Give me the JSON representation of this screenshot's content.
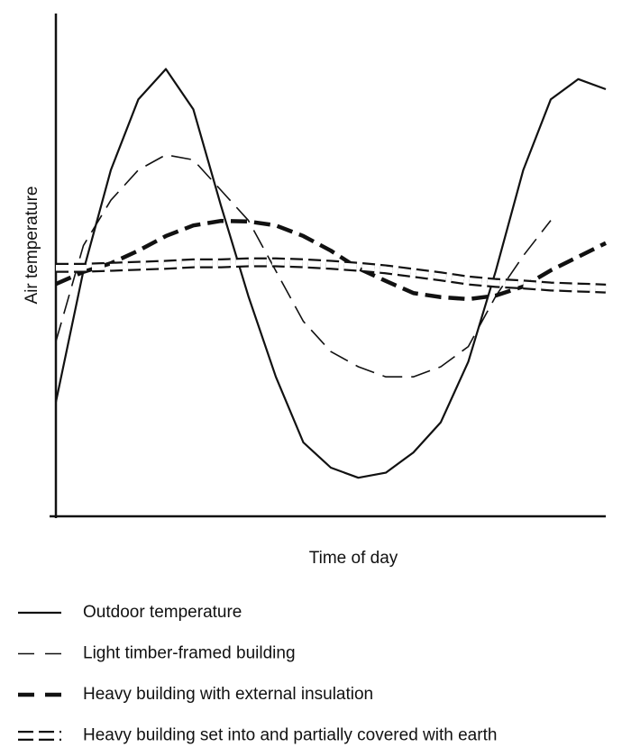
{
  "chart_data": {
    "type": "line",
    "x_label": "Time of day",
    "y_label": "Air temperature",
    "xlim": [
      0,
      100
    ],
    "ylim": [
      0,
      100
    ],
    "x": [
      0,
      5,
      10,
      15,
      20,
      25,
      30,
      35,
      40,
      45,
      50,
      55,
      60,
      65,
      70,
      75,
      80,
      85,
      90,
      95,
      100
    ],
    "series": [
      {
        "name": "Outdoor temperature",
        "color": "#111111",
        "style": "solid",
        "values": [
          23,
          49,
          69,
          83,
          89,
          81,
          62,
          44,
          28,
          15,
          10,
          8,
          9,
          13,
          19,
          31,
          49,
          69,
          83,
          87,
          85
        ]
      },
      {
        "name": "Light timber-framed building",
        "color": "#111111",
        "style": "dashed",
        "values": [
          35,
          54,
          63,
          69,
          72,
          71,
          65,
          59,
          49,
          39,
          33,
          30,
          28,
          28,
          30,
          34,
          44,
          52,
          59,
          null,
          null
        ]
      },
      {
        "name": "Heavy building with external insulation",
        "color": "#111111",
        "style": "thick-dashed",
        "values": [
          46.4,
          48.8,
          50.5,
          53,
          55.9,
          58,
          58.9,
          58.8,
          58,
          55.9,
          53,
          49.5,
          47,
          44.6,
          43.8,
          43.4,
          44.1,
          45.9,
          49.1,
          51.8,
          54.5
        ]
      },
      {
        "name": "Heavy building set into and partially covered with earth",
        "color": "#111111",
        "style": "boxes",
        "values": [
          49.6,
          49.6,
          49.8,
          50,
          50.2,
          50.5,
          50.5,
          50.7,
          50.7,
          50.5,
          50.2,
          49.8,
          49.3,
          48.6,
          47.9,
          47.1,
          46.6,
          46.3,
          45.9,
          45.7,
          45.5
        ]
      }
    ]
  }
}
